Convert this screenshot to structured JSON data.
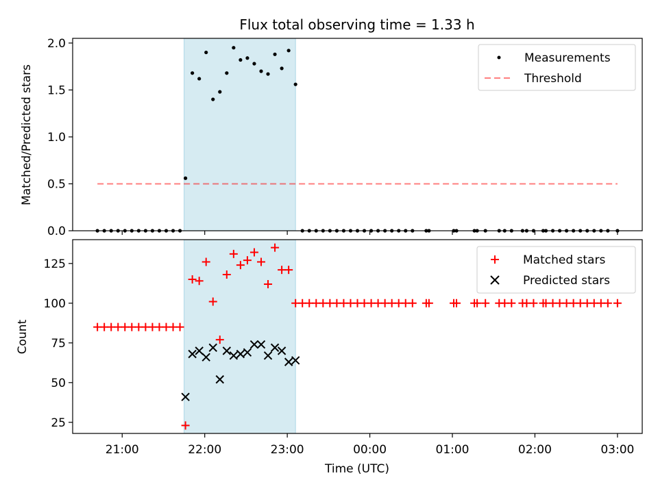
{
  "chart_data": [
    {
      "type": "scatter",
      "title": "Flux total observing time = 1.33 h",
      "xlabel": "",
      "ylabel": "Matched/Predicted stars",
      "ylim": [
        0,
        2.05
      ],
      "yticks": [
        "0.0",
        "0.5",
        "1.0",
        "1.5",
        "2.0"
      ],
      "xlim": [
        "20:24",
        "03:18"
      ],
      "legend_position": "top-right",
      "colors": {
        "highlight": "#add8e6",
        "measurements": "#000000",
        "threshold": "#ff8080"
      },
      "highlight_span": {
        "x": [
          "21:45",
          "23:06"
        ]
      },
      "series": [
        {
          "name": "Measurements",
          "marker": "dot",
          "x": [
            "20:42",
            "20:47",
            "20:52",
            "20:57",
            "21:02",
            "21:07",
            "21:12",
            "21:17",
            "21:22",
            "21:27",
            "21:32",
            "21:37",
            "21:42",
            "21:46",
            "21:51",
            "21:56",
            "22:01",
            "22:06",
            "22:11",
            "22:16",
            "22:21",
            "22:26",
            "22:31",
            "22:36",
            "22:41",
            "22:46",
            "22:51",
            "22:56",
            "23:01",
            "23:06",
            "23:11",
            "23:16",
            "23:21",
            "23:26",
            "23:31",
            "23:36",
            "23:41",
            "23:46",
            "23:51",
            "23:56",
            "00:01",
            "00:06",
            "00:11",
            "00:16",
            "00:21",
            "00:26",
            "00:31",
            "00:41",
            "00:43",
            "01:01",
            "01:03",
            "01:16",
            "01:18",
            "01:24",
            "01:34",
            "01:38",
            "01:43",
            "01:51",
            "01:54",
            "01:59",
            "02:06",
            "02:08",
            "02:13",
            "02:18",
            "02:23",
            "02:28",
            "02:33",
            "02:38",
            "02:43",
            "02:48",
            "02:53",
            "03:00"
          ],
          "y": [
            0,
            0,
            0,
            0,
            0,
            0,
            0,
            0,
            0,
            0,
            0,
            0,
            0,
            0.56,
            1.68,
            1.62,
            1.9,
            1.4,
            1.48,
            1.68,
            1.95,
            1.82,
            1.84,
            1.78,
            1.7,
            1.67,
            1.88,
            1.73,
            1.92,
            1.56,
            0,
            0,
            0,
            0,
            0,
            0,
            0,
            0,
            0,
            0,
            0,
            0,
            0,
            0,
            0,
            0,
            0,
            0,
            0,
            0,
            0,
            0,
            0,
            0,
            0,
            0,
            0,
            0,
            0,
            0,
            0,
            0,
            0,
            0,
            0,
            0,
            0,
            0,
            0,
            0,
            0,
            0
          ]
        },
        {
          "name": "Threshold",
          "marker": "dashed-line",
          "x": [
            "20:42",
            "03:00"
          ],
          "y": [
            0.5,
            0.5
          ]
        }
      ]
    },
    {
      "type": "scatter",
      "title": "",
      "xlabel": "Time (UTC)",
      "ylabel": "Count",
      "ylim": [
        18,
        140
      ],
      "yticks": [
        "25",
        "50",
        "75",
        "100",
        "125"
      ],
      "xlim": [
        "20:24",
        "03:18"
      ],
      "xticks": [
        "21:00",
        "22:00",
        "23:00",
        "00:00",
        "01:00",
        "02:00",
        "03:00"
      ],
      "legend_position": "top-right",
      "colors": {
        "highlight": "#add8e6",
        "matched": "#ff0000",
        "predicted": "#000000"
      },
      "highlight_span": {
        "x": [
          "21:45",
          "23:06"
        ]
      },
      "series": [
        {
          "name": "Matched stars",
          "marker": "plus",
          "x": [
            "20:42",
            "20:47",
            "20:52",
            "20:57",
            "21:02",
            "21:07",
            "21:12",
            "21:17",
            "21:22",
            "21:27",
            "21:32",
            "21:37",
            "21:42",
            "21:46",
            "21:51",
            "21:56",
            "22:01",
            "22:06",
            "22:11",
            "22:16",
            "22:21",
            "22:26",
            "22:31",
            "22:36",
            "22:41",
            "22:46",
            "22:51",
            "22:56",
            "23:01",
            "23:06",
            "23:11",
            "23:16",
            "23:21",
            "23:26",
            "23:31",
            "23:36",
            "23:41",
            "23:46",
            "23:51",
            "23:56",
            "00:01",
            "00:06",
            "00:11",
            "00:16",
            "00:21",
            "00:26",
            "00:31",
            "00:41",
            "00:43",
            "01:01",
            "01:03",
            "01:16",
            "01:18",
            "01:24",
            "01:34",
            "01:38",
            "01:43",
            "01:51",
            "01:54",
            "01:59",
            "02:06",
            "02:08",
            "02:13",
            "02:18",
            "02:23",
            "02:28",
            "02:33",
            "02:38",
            "02:43",
            "02:48",
            "02:53",
            "03:00"
          ],
          "y": [
            85,
            85,
            85,
            85,
            85,
            85,
            85,
            85,
            85,
            85,
            85,
            85,
            85,
            23,
            115,
            114,
            126,
            101,
            77,
            118,
            131,
            124,
            127,
            132,
            126,
            112,
            135,
            121,
            121,
            100,
            100,
            100,
            100,
            100,
            100,
            100,
            100,
            100,
            100,
            100,
            100,
            100,
            100,
            100,
            100,
            100,
            100,
            100,
            100,
            100,
            100,
            100,
            100,
            100,
            100,
            100,
            100,
            100,
            100,
            100,
            100,
            100,
            100,
            100,
            100,
            100,
            100,
            100,
            100,
            100,
            100,
            100
          ]
        },
        {
          "name": "Predicted stars",
          "marker": "x",
          "x": [
            "21:46",
            "21:51",
            "21:56",
            "22:01",
            "22:06",
            "22:11",
            "22:16",
            "22:21",
            "22:26",
            "22:31",
            "22:36",
            "22:41",
            "22:46",
            "22:51",
            "22:56",
            "23:01",
            "23:06"
          ],
          "y": [
            41,
            68,
            70,
            66,
            72,
            52,
            70,
            67,
            68,
            69,
            74,
            74,
            67,
            72,
            70,
            63,
            64
          ]
        }
      ]
    }
  ]
}
